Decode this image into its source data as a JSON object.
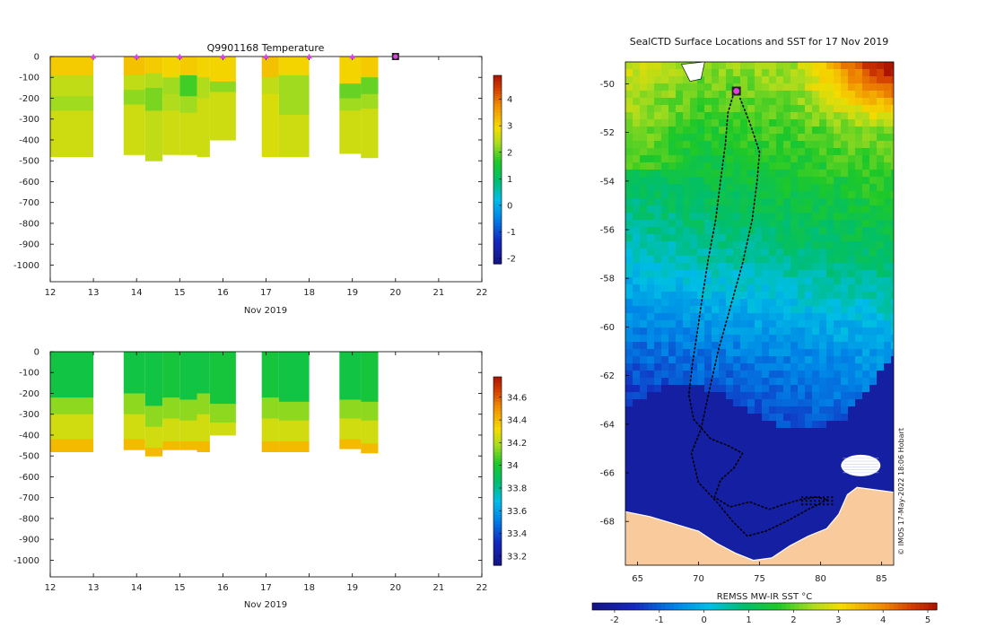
{
  "colors": {
    "land": "#f9cb9c",
    "marker_magenta": "#e040e0",
    "track": "#000000",
    "axis": "#000000"
  },
  "chart_data": [
    {
      "id": "temperature_section",
      "type": "heatmap",
      "title": "Q9901168  Temperature",
      "xlabel": "Nov 2019",
      "x_ticks": [
        12,
        13,
        14,
        15,
        16,
        17,
        18,
        19,
        20,
        21,
        22
      ],
      "x_tick_labels": [
        "12",
        "13",
        "14",
        "15",
        "16",
        "17",
        "18",
        "19",
        "20",
        "21",
        "22"
      ],
      "xlim": [
        12,
        22
      ],
      "ylim": [
        -1080,
        0
      ],
      "y_ticks": [
        0,
        -100,
        -200,
        -300,
        -400,
        -500,
        -600,
        -700,
        -800,
        -900,
        -1000
      ],
      "y_tick_labels": [
        "0",
        "-100",
        "-200",
        "-300",
        "-400",
        "-500",
        "-600",
        "-700",
        "-800",
        "-900",
        "-1000"
      ],
      "colorbar": {
        "min": -2.2,
        "max": 4.9,
        "ticks": [
          4,
          3,
          2,
          1,
          0,
          -1,
          -2
        ],
        "tick_labels": [
          "4",
          "3",
          "2",
          "1",
          "0",
          "-1",
          "-2"
        ]
      },
      "profile_days": [
        13,
        14,
        15,
        16,
        17,
        18,
        19
      ],
      "current_position_day": 20,
      "profiles": [
        {
          "x0": 12.0,
          "x1": 13.0,
          "depth": 480,
          "layers": [
            [
              0,
              90,
              3.1
            ],
            [
              90,
              190,
              2.5
            ],
            [
              190,
              260,
              2.3
            ],
            [
              260,
              480,
              2.6
            ]
          ]
        },
        {
          "x0": 13.7,
          "x1": 14.2,
          "depth": 470,
          "layers": [
            [
              0,
              90,
              3.2
            ],
            [
              90,
              160,
              2.5
            ],
            [
              160,
              230,
              2.2
            ],
            [
              230,
              470,
              2.6
            ]
          ]
        },
        {
          "x0": 14.2,
          "x1": 14.6,
          "depth": 500,
          "layers": [
            [
              0,
              80,
              3.1
            ],
            [
              80,
              150,
              2.4
            ],
            [
              150,
              260,
              2.1
            ],
            [
              260,
              500,
              2.5
            ]
          ]
        },
        {
          "x0": 14.6,
          "x1": 15.0,
          "depth": 470,
          "layers": [
            [
              0,
              100,
              3.0
            ],
            [
              100,
              180,
              2.3
            ],
            [
              180,
              260,
              2.4
            ],
            [
              260,
              470,
              2.6
            ]
          ]
        },
        {
          "x0": 15.0,
          "x1": 15.4,
          "depth": 470,
          "layers": [
            [
              0,
              90,
              3.1
            ],
            [
              90,
              190,
              1.8
            ],
            [
              190,
              270,
              2.3
            ],
            [
              270,
              470,
              2.6
            ]
          ]
        },
        {
          "x0": 15.4,
          "x1": 15.7,
          "depth": 480,
          "layers": [
            [
              0,
              100,
              3.0
            ],
            [
              100,
              200,
              2.4
            ],
            [
              200,
              480,
              2.6
            ]
          ]
        },
        {
          "x0": 15.7,
          "x1": 16.3,
          "depth": 400,
          "layers": [
            [
              0,
              120,
              3.0
            ],
            [
              120,
              170,
              2.2
            ],
            [
              170,
              400,
              2.6
            ]
          ]
        },
        {
          "x0": 16.9,
          "x1": 17.3,
          "depth": 480,
          "layers": [
            [
              0,
              100,
              3.2
            ],
            [
              100,
              180,
              2.5
            ],
            [
              180,
              480,
              2.7
            ]
          ]
        },
        {
          "x0": 17.3,
          "x1": 18.0,
          "depth": 480,
          "layers": [
            [
              0,
              90,
              3.0
            ],
            [
              90,
              280,
              2.3
            ],
            [
              280,
              480,
              2.6
            ]
          ]
        },
        {
          "x0": 18.7,
          "x1": 19.2,
          "depth": 465,
          "layers": [
            [
              0,
              130,
              3.0
            ],
            [
              130,
              200,
              2.0
            ],
            [
              200,
              260,
              2.3
            ],
            [
              260,
              465,
              2.6
            ]
          ]
        },
        {
          "x0": 19.2,
          "x1": 19.6,
          "depth": 485,
          "layers": [
            [
              0,
              100,
              3.1
            ],
            [
              100,
              180,
              2.0
            ],
            [
              180,
              250,
              2.3
            ],
            [
              250,
              485,
              2.6
            ]
          ]
        }
      ]
    },
    {
      "id": "salinity_section",
      "type": "heatmap",
      "title": "",
      "xlabel": "Nov 2019",
      "x_ticks": [
        12,
        13,
        14,
        15,
        16,
        17,
        18,
        19,
        20,
        21,
        22
      ],
      "x_tick_labels": [
        "12",
        "13",
        "14",
        "15",
        "16",
        "17",
        "18",
        "19",
        "20",
        "21",
        "22"
      ],
      "xlim": [
        12,
        22
      ],
      "ylim": [
        -1080,
        0
      ],
      "y_ticks": [
        0,
        -100,
        -200,
        -300,
        -400,
        -500,
        -600,
        -700,
        -800,
        -900,
        -1000
      ],
      "y_tick_labels": [
        "0",
        "-100",
        "-200",
        "-300",
        "-400",
        "-500",
        "-600",
        "-700",
        "-800",
        "-900",
        "-1000"
      ],
      "colorbar": {
        "min": 33.12,
        "max": 34.78,
        "ticks": [
          34.6,
          34.4,
          34.2,
          34,
          33.8,
          33.6,
          33.4,
          33.2
        ],
        "tick_labels": [
          "34.6",
          "34.4",
          "34.2",
          "34",
          "33.8",
          "33.6",
          "33.4",
          "33.2"
        ]
      },
      "profiles": [
        {
          "x0": 12.0,
          "x1": 13.0,
          "depth": 480,
          "layers": [
            [
              0,
              220,
              33.95
            ],
            [
              220,
              300,
              34.15
            ],
            [
              300,
              420,
              34.25
            ],
            [
              420,
              480,
              34.4
            ]
          ]
        },
        {
          "x0": 13.7,
          "x1": 14.2,
          "depth": 470,
          "layers": [
            [
              0,
              200,
              33.95
            ],
            [
              200,
              300,
              34.15
            ],
            [
              300,
              420,
              34.25
            ],
            [
              420,
              470,
              34.4
            ]
          ]
        },
        {
          "x0": 14.2,
          "x1": 14.6,
          "depth": 500,
          "layers": [
            [
              0,
              260,
              33.95
            ],
            [
              260,
              360,
              34.15
            ],
            [
              360,
              460,
              34.25
            ],
            [
              460,
              500,
              34.4
            ]
          ]
        },
        {
          "x0": 14.6,
          "x1": 15.0,
          "depth": 470,
          "layers": [
            [
              0,
              220,
              33.97
            ],
            [
              220,
              320,
              34.15
            ],
            [
              320,
              430,
              34.25
            ],
            [
              430,
              470,
              34.4
            ]
          ]
        },
        {
          "x0": 15.0,
          "x1": 15.4,
          "depth": 470,
          "layers": [
            [
              0,
              230,
              33.95
            ],
            [
              230,
              330,
              34.15
            ],
            [
              330,
              430,
              34.25
            ],
            [
              430,
              470,
              34.4
            ]
          ]
        },
        {
          "x0": 15.4,
          "x1": 15.7,
          "depth": 480,
          "layers": [
            [
              0,
              200,
              33.95
            ],
            [
              200,
              300,
              34.15
            ],
            [
              300,
              430,
              34.25
            ],
            [
              430,
              480,
              34.4
            ]
          ]
        },
        {
          "x0": 15.7,
          "x1": 16.3,
          "depth": 400,
          "layers": [
            [
              0,
              250,
              33.97
            ],
            [
              250,
              340,
              34.15
            ],
            [
              340,
              400,
              34.25
            ]
          ]
        },
        {
          "x0": 16.9,
          "x1": 17.3,
          "depth": 480,
          "layers": [
            [
              0,
              220,
              33.97
            ],
            [
              220,
              320,
              34.15
            ],
            [
              320,
              430,
              34.25
            ],
            [
              430,
              480,
              34.4
            ]
          ]
        },
        {
          "x0": 17.3,
          "x1": 18.0,
          "depth": 480,
          "layers": [
            [
              0,
              240,
              33.95
            ],
            [
              240,
              330,
              34.15
            ],
            [
              330,
              430,
              34.25
            ],
            [
              430,
              480,
              34.4
            ]
          ]
        },
        {
          "x0": 18.7,
          "x1": 19.2,
          "depth": 465,
          "layers": [
            [
              0,
              230,
              33.95
            ],
            [
              230,
              320,
              34.15
            ],
            [
              320,
              420,
              34.25
            ],
            [
              420,
              465,
              34.4
            ]
          ]
        },
        {
          "x0": 19.2,
          "x1": 19.6,
          "depth": 485,
          "layers": [
            [
              0,
              240,
              33.97
            ],
            [
              240,
              330,
              34.15
            ],
            [
              330,
              440,
              34.25
            ],
            [
              440,
              485,
              34.4
            ]
          ]
        }
      ]
    },
    {
      "id": "sst_map",
      "type": "heatmap",
      "title": "SealCTD Surface Locations and SST for 17 Nov 2019",
      "xlabel": "REMSS MW-IR SST °C",
      "lon_range": [
        64,
        86
      ],
      "lat_range": [
        -69.8,
        -49.1
      ],
      "lon_ticks": [
        65,
        70,
        75,
        80,
        85
      ],
      "lon_tick_labels": [
        "65",
        "70",
        "75",
        "80",
        "85"
      ],
      "lat_ticks": [
        -50,
        -52,
        -54,
        -56,
        -58,
        -60,
        -62,
        -64,
        -66,
        -68
      ],
      "lat_tick_labels": [
        "-50",
        "-52",
        "-54",
        "-56",
        "-58",
        "-60",
        "-62",
        "-64",
        "-66",
        "-68"
      ],
      "colorbar": {
        "min": -2.5,
        "max": 5.2,
        "ticks": [
          -2,
          -1,
          0,
          1,
          2,
          3,
          4,
          5
        ],
        "tick_labels": [
          "-2",
          "-1",
          "0",
          "1",
          "2",
          "3",
          "4",
          "5"
        ]
      },
      "current_position": {
        "lon": 73.1,
        "lat": -50.3
      },
      "credit": "© IMOS 17-May-2022 18:06 Hobart"
    }
  ]
}
